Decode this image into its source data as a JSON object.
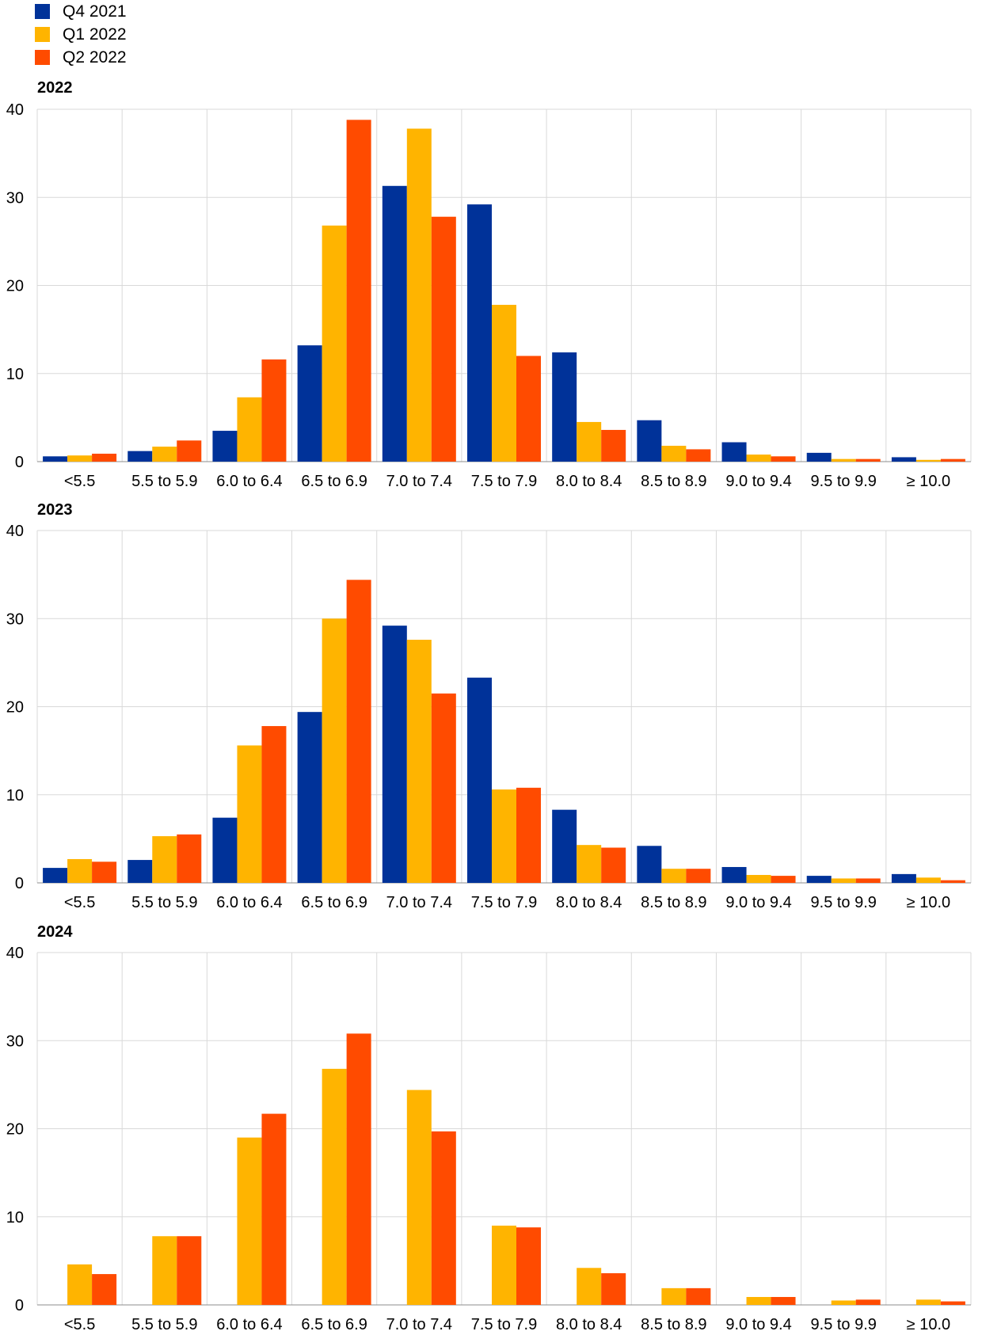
{
  "legend": [
    {
      "name": "Q4 2021",
      "color": "#003299"
    },
    {
      "name": "Q1 2022",
      "color": "#FFB400"
    },
    {
      "name": "Q2 2022",
      "color": "#FF4B00"
    }
  ],
  "chart_data": [
    {
      "type": "bar",
      "title": "2022",
      "categories": [
        "<5.5",
        "5.5 to 5.9",
        "6.0 to 6.4",
        "6.5 to 6.9",
        "7.0 to 7.4",
        "7.5 to 7.9",
        "8.0 to 8.4",
        "8.5 to 8.9",
        "9.0 to 9.4",
        "9.5 to 9.9",
        "≥ 10.0"
      ],
      "series": [
        {
          "name": "Q4 2021",
          "values": [
            0.6,
            1.2,
            3.5,
            13.2,
            31.3,
            29.2,
            12.4,
            4.7,
            2.2,
            1.0,
            0.5
          ]
        },
        {
          "name": "Q1 2022",
          "values": [
            0.7,
            1.7,
            7.3,
            26.8,
            37.8,
            17.8,
            4.5,
            1.8,
            0.8,
            0.3,
            0.2
          ]
        },
        {
          "name": "Q2 2022",
          "values": [
            0.9,
            2.4,
            11.6,
            38.8,
            27.8,
            12.0,
            3.6,
            1.4,
            0.6,
            0.3,
            0.3
          ]
        }
      ],
      "ylim": [
        0,
        40
      ],
      "yticks": [
        0,
        10,
        20,
        30,
        40
      ]
    },
    {
      "type": "bar",
      "title": "2023",
      "categories": [
        "<5.5",
        "5.5 to 5.9",
        "6.0 to 6.4",
        "6.5 to 6.9",
        "7.0 to 7.4",
        "7.5 to 7.9",
        "8.0 to 8.4",
        "8.5 to 8.9",
        "9.0 to 9.4",
        "9.5 to 9.9",
        "≥ 10.0"
      ],
      "series": [
        {
          "name": "Q4 2021",
          "values": [
            1.7,
            2.6,
            7.4,
            19.4,
            29.2,
            23.3,
            8.3,
            4.2,
            1.8,
            0.8,
            1.0
          ]
        },
        {
          "name": "Q1 2022",
          "values": [
            2.7,
            5.3,
            15.6,
            30.0,
            27.6,
            10.6,
            4.3,
            1.6,
            0.9,
            0.5,
            0.6
          ]
        },
        {
          "name": "Q2 2022",
          "values": [
            2.4,
            5.5,
            17.8,
            34.4,
            21.5,
            10.8,
            4.0,
            1.6,
            0.8,
            0.5,
            0.3
          ]
        }
      ],
      "ylim": [
        0,
        40
      ],
      "yticks": [
        0,
        10,
        20,
        30,
        40
      ]
    },
    {
      "type": "bar",
      "title": "2024",
      "categories": [
        "<5.5",
        "5.5 to 5.9",
        "6.0 to 6.4",
        "6.5 to 6.9",
        "7.0 to 7.4",
        "7.5 to 7.9",
        "8.0 to 8.4",
        "8.5 to 8.9",
        "9.0 to 9.4",
        "9.5 to 9.9",
        "≥ 10.0"
      ],
      "series": [
        {
          "name": "Q1 2022",
          "values": [
            4.6,
            7.8,
            19.0,
            26.8,
            24.4,
            9.0,
            4.2,
            1.9,
            0.9,
            0.5,
            0.6
          ]
        },
        {
          "name": "Q2 2022",
          "values": [
            3.5,
            7.8,
            21.7,
            30.8,
            19.7,
            8.8,
            3.6,
            1.9,
            0.9,
            0.6,
            0.4
          ]
        }
      ],
      "ylim": [
        0,
        40
      ],
      "yticks": [
        0,
        10,
        20,
        30,
        40
      ]
    }
  ]
}
